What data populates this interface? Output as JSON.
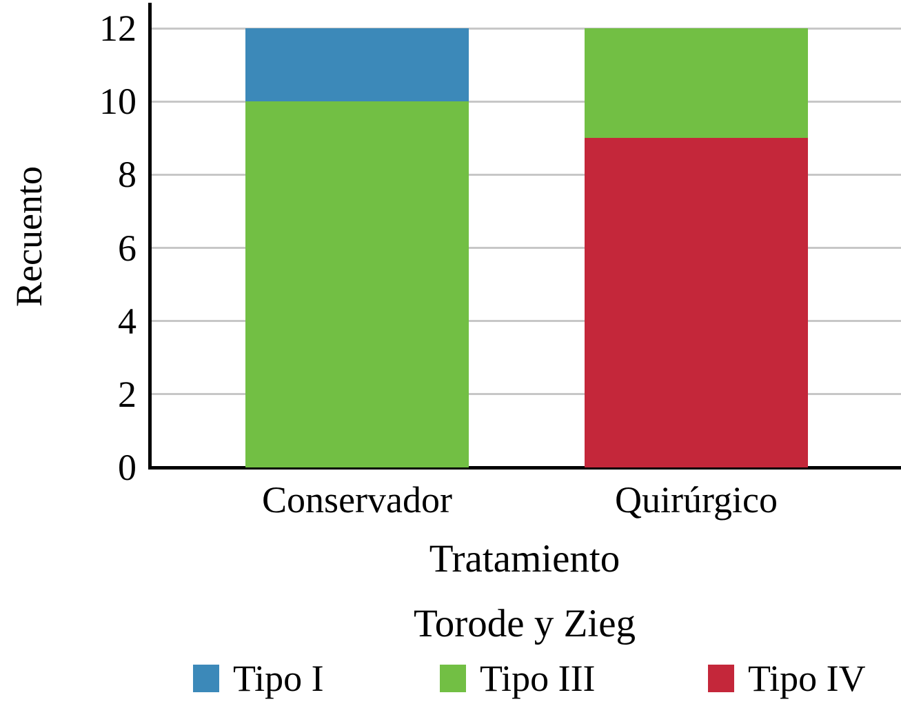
{
  "chart_data": {
    "type": "bar",
    "stacked": true,
    "title": "",
    "xlabel": "Tratamiento",
    "ylabel": "Recuento",
    "legend_title": "Torode y Zieg",
    "legend_position": "bottom",
    "grid": true,
    "ylim": [
      0,
      12
    ],
    "yticks": [
      0,
      2,
      4,
      6,
      8,
      10,
      12
    ],
    "categories": [
      "Conservador",
      "Quirúrgico"
    ],
    "series": [
      {
        "name": "Tipo I",
        "color": "#3C89B9",
        "values": [
          2,
          0
        ]
      },
      {
        "name": "Tipo III",
        "color": "#72BF44",
        "values": [
          10,
          3
        ]
      },
      {
        "name": "Tipo IV",
        "color": "#C4273A",
        "values": [
          0,
          9
        ]
      }
    ],
    "totals": [
      12,
      12
    ],
    "axis_color": "#000000",
    "gridline_color": "#c7c7c7"
  }
}
